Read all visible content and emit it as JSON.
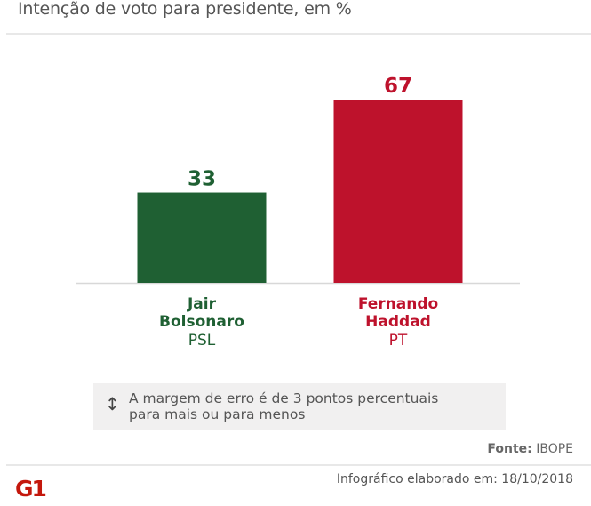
{
  "header": {
    "subtitle": "Intenção de voto para presidente, em %"
  },
  "chart_data": {
    "type": "bar",
    "title": "",
    "subtitle": "Intenção de voto para presidente, em %",
    "categories": [
      "Jair Bolsonaro",
      "Fernando Haddad"
    ],
    "values": [
      33,
      67
    ],
    "ylim": [
      0,
      67
    ],
    "xlabel": "",
    "ylabel": "",
    "grid": false,
    "bars": [
      {
        "name_line1": "Jair",
        "name_line2": "Bolsonaro",
        "party": "PSL",
        "value": 33,
        "label": "33",
        "color": "#1f6033"
      },
      {
        "name_line1": "Fernando",
        "name_line2": "Haddad",
        "party": "PT",
        "value": 67,
        "label": "67",
        "color": "#be122c"
      }
    ]
  },
  "note": {
    "icon": "vertical-arrows-icon",
    "line1": "A margem de erro é de 3 pontos percentuais",
    "line2": "para mais ou para menos"
  },
  "source": {
    "label": "Fonte:",
    "value": "IBOPE"
  },
  "footer": {
    "logo_text": "G1",
    "logo_color": "#c4170c",
    "date_text": "Infográfico elaborado em: 18/10/2018"
  }
}
